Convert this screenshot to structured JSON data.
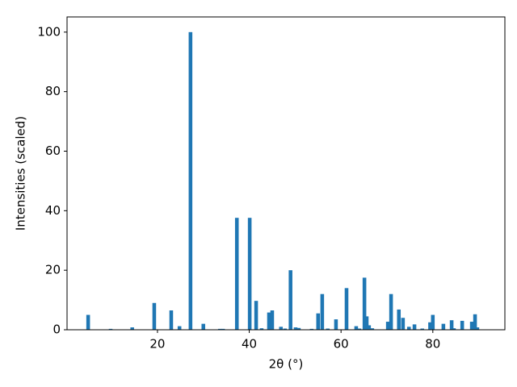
{
  "chart_data": {
    "type": "bar",
    "xlabel": "2θ (°)",
    "ylabel": "Intensities (scaled)",
    "color": "#1f77b4",
    "x": [
      4.9,
      9.8,
      14.5,
      19.3,
      23.0,
      24.8,
      27.2,
      30.0,
      33.6,
      34.3,
      37.3,
      40.1,
      41.5,
      42.7,
      44.3,
      45.0,
      46.9,
      47.8,
      49.0,
      50.1,
      50.8,
      53.6,
      55.0,
      55.9,
      57.1,
      58.9,
      61.2,
      63.3,
      64.0,
      65.1,
      65.6,
      66.1,
      66.8,
      70.2,
      70.9,
      72.6,
      73.5,
      74.8,
      76.0,
      77.7,
      79.4,
      80.0,
      82.3,
      84.1,
      84.6,
      86.4,
      88.5,
      89.2,
      89.7
    ],
    "values": [
      5,
      0.3,
      0.8,
      9,
      6.5,
      1.2,
      100,
      2,
      0.3,
      0.3,
      37.6,
      37.6,
      9.7,
      0.5,
      5.8,
      6.5,
      1.0,
      0.4,
      20,
      0.8,
      0.6,
      0.3,
      5.5,
      12,
      0.4,
      3.5,
      14,
      1.2,
      0.4,
      17.5,
      4.5,
      1.5,
      0.5,
      2.7,
      12,
      6.8,
      4,
      1,
      1.8,
      0.4,
      2.5,
      5,
      2,
      3.2,
      0.5,
      3,
      2.7,
      5.2,
      0.8
    ],
    "xlim": [
      0.3,
      95.7
    ],
    "ylim": [
      0,
      105.1
    ],
    "xticks": [
      20,
      40,
      60,
      80
    ],
    "yticks": [
      0,
      20,
      40,
      60,
      80,
      100
    ]
  }
}
